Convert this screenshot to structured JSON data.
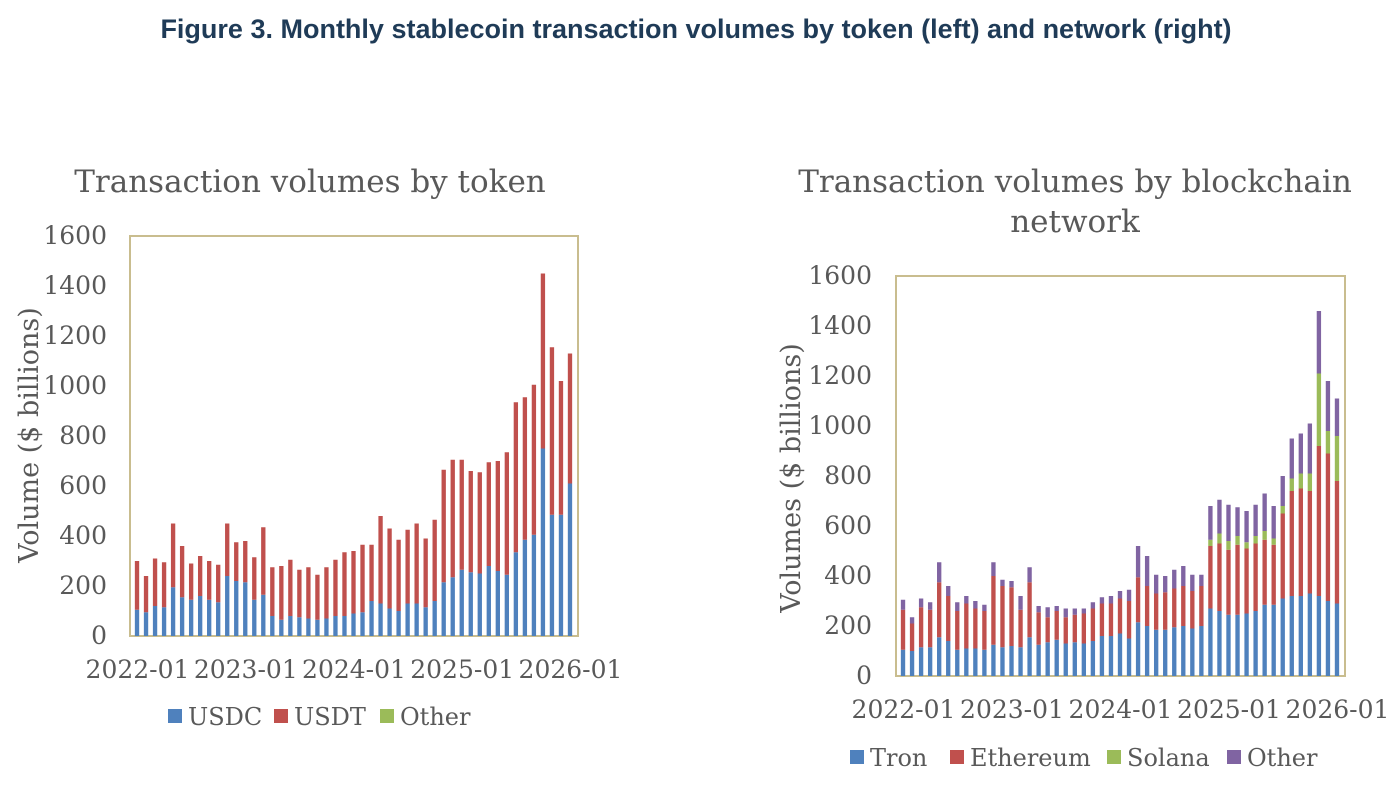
{
  "figure_title": "Figure 3.  Monthly stablecoin transaction volumes by token (left) and network (right)",
  "colors": {
    "USDC": "#4f81bd",
    "USDT": "#c0504d",
    "Other_token": "#9bbb59",
    "Tron": "#4f81bd",
    "Ethereum": "#c0504d",
    "Solana": "#9bbb59",
    "Other_network": "#8064a2",
    "plot_border": "#c9bd8f",
    "text": "#595959"
  },
  "chart_data": [
    {
      "type": "bar",
      "stacked": true,
      "title": "Transaction volumes by token",
      "xlabel": "",
      "ylabel": "Volume ($ billions)",
      "ylim": [
        0,
        1600
      ],
      "yticks": [
        "0",
        "200",
        "400",
        "600",
        "800",
        "1000",
        "1200",
        "1400",
        "1600"
      ],
      "xticks": [
        {
          "label": "2022-01",
          "index": 0
        },
        {
          "label": "2023-01",
          "index": 12
        },
        {
          "label": "2024-01",
          "index": 24
        },
        {
          "label": "2025-01",
          "index": 36
        },
        {
          "label": "2026-01",
          "index": 48
        }
      ],
      "legend_position": "bottom",
      "categories": [
        "2022-01",
        "2022-02",
        "2022-03",
        "2022-04",
        "2022-05",
        "2022-06",
        "2022-07",
        "2022-08",
        "2022-09",
        "2022-10",
        "2022-11",
        "2022-12",
        "2023-01",
        "2023-02",
        "2023-03",
        "2023-04",
        "2023-05",
        "2023-06",
        "2023-07",
        "2023-08",
        "2023-09",
        "2023-10",
        "2023-11",
        "2023-12",
        "2024-01",
        "2024-02",
        "2024-03",
        "2024-04",
        "2024-05",
        "2024-06",
        "2024-07",
        "2024-08",
        "2024-09",
        "2024-10",
        "2024-11",
        "2024-12",
        "2025-01",
        "2025-02",
        "2025-03",
        "2025-04",
        "2025-05",
        "2025-06",
        "2025-07",
        "2025-08",
        "2025-09",
        "2025-10",
        "2025-11",
        "2025-12",
        "2026-01"
      ],
      "series": [
        {
          "name": "USDC",
          "color_key": "USDC",
          "values": [
            105,
            95,
            120,
            115,
            195,
            155,
            145,
            160,
            145,
            135,
            240,
            220,
            215,
            145,
            165,
            80,
            65,
            80,
            75,
            70,
            65,
            70,
            80,
            80,
            90,
            95,
            140,
            130,
            110,
            100,
            130,
            130,
            115,
            140,
            215,
            235,
            265,
            255,
            250,
            280,
            260,
            245,
            335,
            385,
            405,
            750,
            485,
            485,
            610
          ]
        },
        {
          "name": "USDT",
          "color_key": "USDT",
          "values": [
            195,
            145,
            190,
            180,
            255,
            205,
            145,
            160,
            155,
            150,
            210,
            155,
            165,
            170,
            270,
            195,
            215,
            225,
            190,
            205,
            180,
            205,
            225,
            255,
            250,
            270,
            225,
            350,
            320,
            285,
            295,
            320,
            275,
            325,
            450,
            470,
            440,
            405,
            405,
            415,
            440,
            490,
            600,
            570,
            600,
            700,
            670,
            535,
            520
          ]
        },
        {
          "name": "Other",
          "color_key": "Other_token",
          "values": [
            0,
            0,
            0,
            0,
            0,
            0,
            0,
            0,
            0,
            0,
            0,
            0,
            0,
            0,
            0,
            0,
            0,
            0,
            0,
            0,
            0,
            0,
            0,
            0,
            0,
            0,
            0,
            0,
            0,
            0,
            0,
            0,
            0,
            0,
            0,
            0,
            0,
            0,
            0,
            0,
            0,
            0,
            0,
            0,
            0,
            0,
            0,
            0,
            0
          ]
        }
      ]
    },
    {
      "type": "bar",
      "stacked": true,
      "title": "Transaction volumes by blockchain network",
      "title_lines": [
        "Transaction volumes by blockchain",
        "network"
      ],
      "xlabel": "",
      "ylabel": "Volumes ($ billions)",
      "ylim": [
        0,
        1600
      ],
      "yticks": [
        "0",
        "200",
        "400",
        "600",
        "800",
        "1000",
        "1200",
        "1400",
        "1600"
      ],
      "xticks": [
        {
          "label": "2022-01",
          "index": 0
        },
        {
          "label": "2023-01",
          "index": 12
        },
        {
          "label": "2024-01",
          "index": 24
        },
        {
          "label": "2025-01",
          "index": 36
        },
        {
          "label": "2026-01",
          "index": 48
        }
      ],
      "legend_position": "bottom",
      "categories": [
        "2022-01",
        "2022-02",
        "2022-03",
        "2022-04",
        "2022-05",
        "2022-06",
        "2022-07",
        "2022-08",
        "2022-09",
        "2022-10",
        "2022-11",
        "2022-12",
        "2023-01",
        "2023-02",
        "2023-03",
        "2023-04",
        "2023-05",
        "2023-06",
        "2023-07",
        "2023-08",
        "2023-09",
        "2023-10",
        "2023-11",
        "2023-12",
        "2024-01",
        "2024-02",
        "2024-03",
        "2024-04",
        "2024-05",
        "2024-06",
        "2024-07",
        "2024-08",
        "2024-09",
        "2024-10",
        "2024-11",
        "2024-12",
        "2025-01",
        "2025-02",
        "2025-03",
        "2025-04",
        "2025-05",
        "2025-06",
        "2025-07",
        "2025-08",
        "2025-09",
        "2025-10",
        "2025-11",
        "2025-12",
        "2026-01"
      ],
      "series": [
        {
          "name": "Tron",
          "color_key": "Tron",
          "values": [
            105,
            100,
            115,
            115,
            155,
            140,
            105,
            110,
            110,
            105,
            125,
            115,
            120,
            115,
            155,
            125,
            135,
            145,
            130,
            135,
            130,
            140,
            160,
            160,
            170,
            150,
            215,
            200,
            185,
            185,
            195,
            200,
            190,
            200,
            270,
            260,
            245,
            245,
            250,
            260,
            285,
            285,
            310,
            320,
            320,
            330,
            320,
            300,
            290
          ]
        },
        {
          "name": "Ethereum",
          "color_key": "Ethereum",
          "values": [
            160,
            110,
            160,
            150,
            220,
            180,
            155,
            180,
            160,
            155,
            275,
            245,
            235,
            150,
            220,
            130,
            100,
            115,
            105,
            110,
            120,
            130,
            130,
            130,
            140,
            150,
            180,
            160,
            145,
            150,
            155,
            160,
            150,
            160,
            250,
            270,
            260,
            280,
            260,
            270,
            260,
            240,
            340,
            420,
            430,
            410,
            600,
            590,
            490
          ]
        },
        {
          "name": "Solana",
          "color_key": "Solana",
          "values": [
            0,
            0,
            0,
            0,
            0,
            0,
            0,
            0,
            0,
            0,
            0,
            0,
            0,
            0,
            0,
            0,
            0,
            0,
            0,
            0,
            0,
            0,
            0,
            0,
            0,
            0,
            0,
            0,
            0,
            0,
            0,
            0,
            0,
            0,
            25,
            40,
            35,
            35,
            25,
            30,
            35,
            25,
            30,
            50,
            60,
            70,
            290,
            90,
            180
          ]
        },
        {
          "name": "Other",
          "color_key": "Other_network",
          "values": [
            40,
            25,
            35,
            30,
            80,
            40,
            35,
            30,
            30,
            25,
            55,
            25,
            25,
            55,
            60,
            25,
            40,
            20,
            35,
            25,
            20,
            25,
            25,
            30,
            30,
            45,
            125,
            120,
            75,
            65,
            75,
            80,
            65,
            45,
            135,
            135,
            145,
            115,
            125,
            125,
            150,
            130,
            120,
            160,
            160,
            200,
            250,
            200,
            150
          ]
        }
      ]
    }
  ]
}
